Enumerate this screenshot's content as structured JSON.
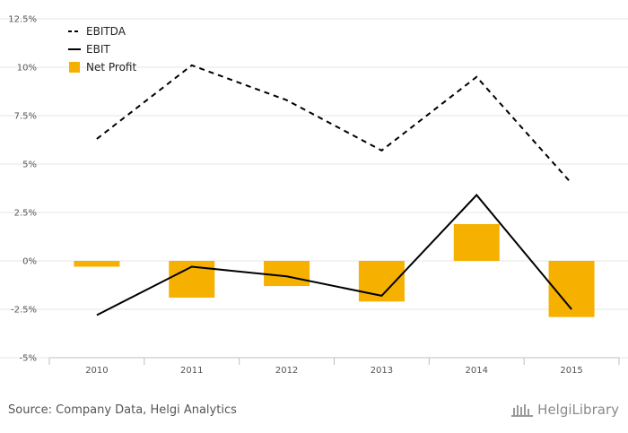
{
  "chart_data": {
    "type": "bar+line",
    "categories": [
      "2010",
      "2011",
      "2012",
      "2013",
      "2014",
      "2015"
    ],
    "series": [
      {
        "name": "EBITDA",
        "type": "line",
        "style": "dashed",
        "color": "#000000",
        "values": [
          6.3,
          10.1,
          8.3,
          5.7,
          9.5,
          4.0
        ]
      },
      {
        "name": "EBIT",
        "type": "line",
        "style": "solid",
        "color": "#000000",
        "values": [
          -2.8,
          -0.3,
          -0.8,
          -1.8,
          3.4,
          -2.5
        ]
      },
      {
        "name": "Net Profit",
        "type": "bar",
        "color": "#F5B000",
        "values": [
          -0.3,
          -1.9,
          -1.3,
          -2.1,
          1.9,
          -2.9
        ]
      }
    ],
    "ylim": [
      -5,
      12.5
    ],
    "yticks": [
      "-5%",
      "-2.5%",
      "0%",
      "2.5%",
      "5%",
      "7.5%",
      "10%",
      "12.5%"
    ],
    "ytick_values": [
      -5,
      -2.5,
      0,
      2.5,
      5,
      7.5,
      10,
      12.5
    ],
    "grid": true,
    "legend_position": "top-left"
  },
  "footer": {
    "source": "Source: Company Data, Helgi Analytics",
    "logo_text": "HelgiLibrary"
  }
}
